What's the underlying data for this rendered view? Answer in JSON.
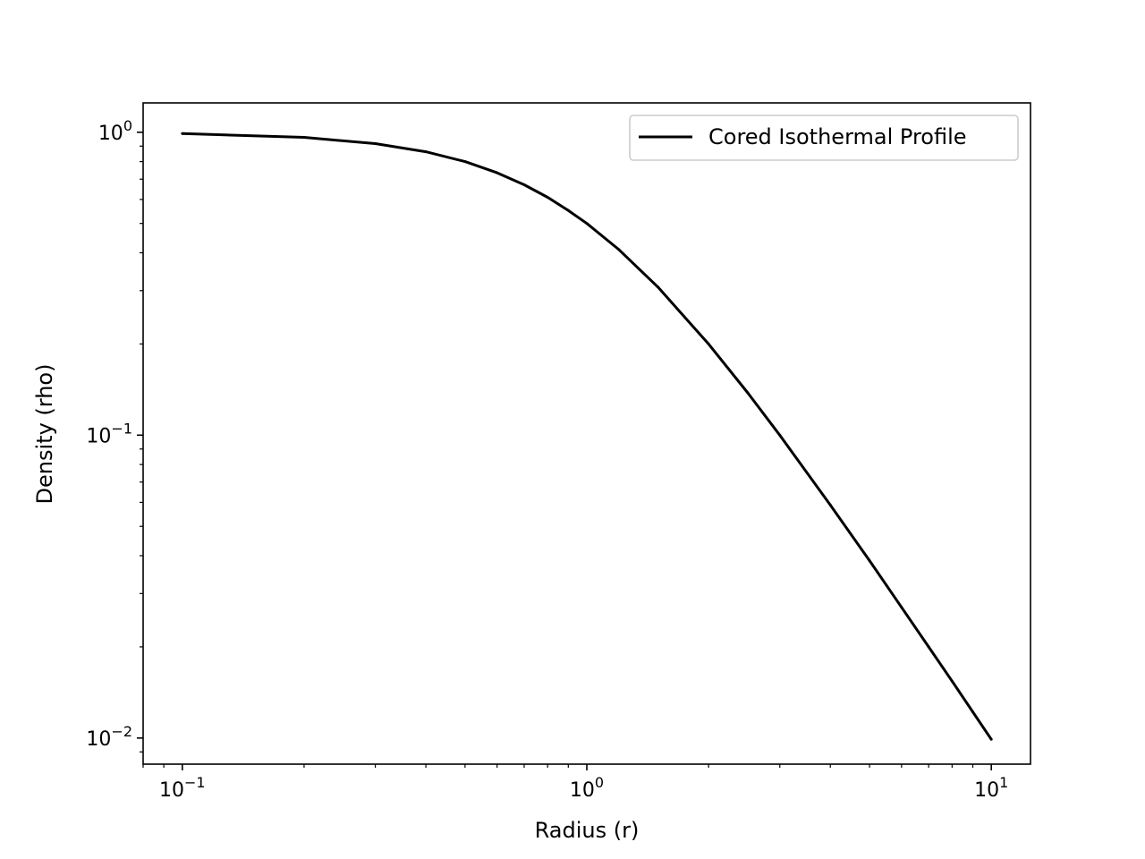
{
  "chart_data": {
    "type": "line",
    "title": "",
    "xlabel": "Radius (r)",
    "ylabel": "Density (rho)",
    "xscale": "log",
    "yscale": "log",
    "xlim": [
      0.08,
      12.5
    ],
    "ylim": [
      0.0082,
      1.25
    ],
    "x_ticks": [
      0.1,
      1,
      10
    ],
    "y_ticks": [
      0.01,
      0.1,
      1
    ],
    "legend": {
      "placement": "top-right",
      "entries": [
        "Cored Isothermal Profile"
      ]
    },
    "grid": false,
    "series": [
      {
        "name": "Cored Isothermal Profile",
        "color": "#000000",
        "x": [
          0.1,
          0.2,
          0.3,
          0.4,
          0.5,
          0.6,
          0.7,
          0.8,
          0.9,
          1.0,
          1.2,
          1.5,
          2.0,
          2.5,
          3.0,
          4.0,
          5.0,
          6.0,
          7.0,
          8.0,
          9.0,
          10.0
        ],
        "y": [
          0.99,
          0.962,
          0.917,
          0.862,
          0.8,
          0.735,
          0.671,
          0.61,
          0.552,
          0.5,
          0.41,
          0.308,
          0.2,
          0.138,
          0.1,
          0.0588,
          0.0385,
          0.027,
          0.02,
          0.0154,
          0.0122,
          0.0099
        ]
      }
    ]
  }
}
